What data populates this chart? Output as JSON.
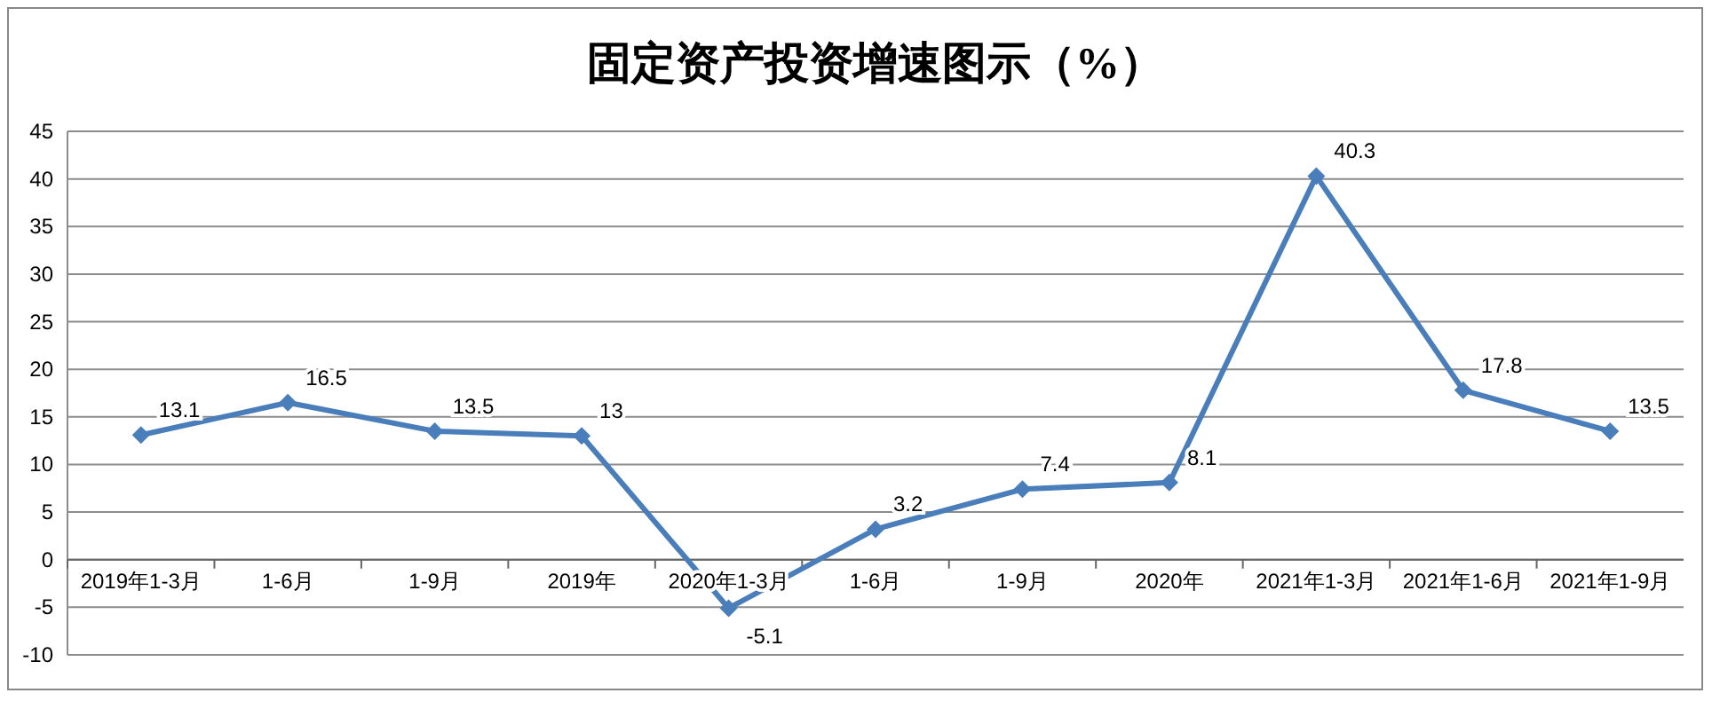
{
  "chart_data": {
    "type": "line",
    "title": "固定资产投资增速图示（%）",
    "categories": [
      "2019年1-3月",
      "1-6月",
      "1-9月",
      "2019年",
      "2020年1-3月",
      "1-6月",
      "1-9月",
      "2020年",
      "2021年1-3月",
      "2021年1-6月",
      "2021年1-9月"
    ],
    "series": [
      {
        "color": "#4a7ebb",
        "values": [
          13.1,
          16.5,
          13.5,
          13,
          -5.1,
          3.2,
          7.4,
          8.1,
          40.3,
          17.8,
          13.5
        ]
      }
    ],
    "ylim": [
      -10,
      45
    ],
    "yticks": [
      -10,
      -5,
      0,
      5,
      10,
      15,
      20,
      25,
      30,
      35,
      40,
      45
    ],
    "grid": "y",
    "marker": "diamond",
    "line_style": "solid",
    "data_labels": true
  }
}
